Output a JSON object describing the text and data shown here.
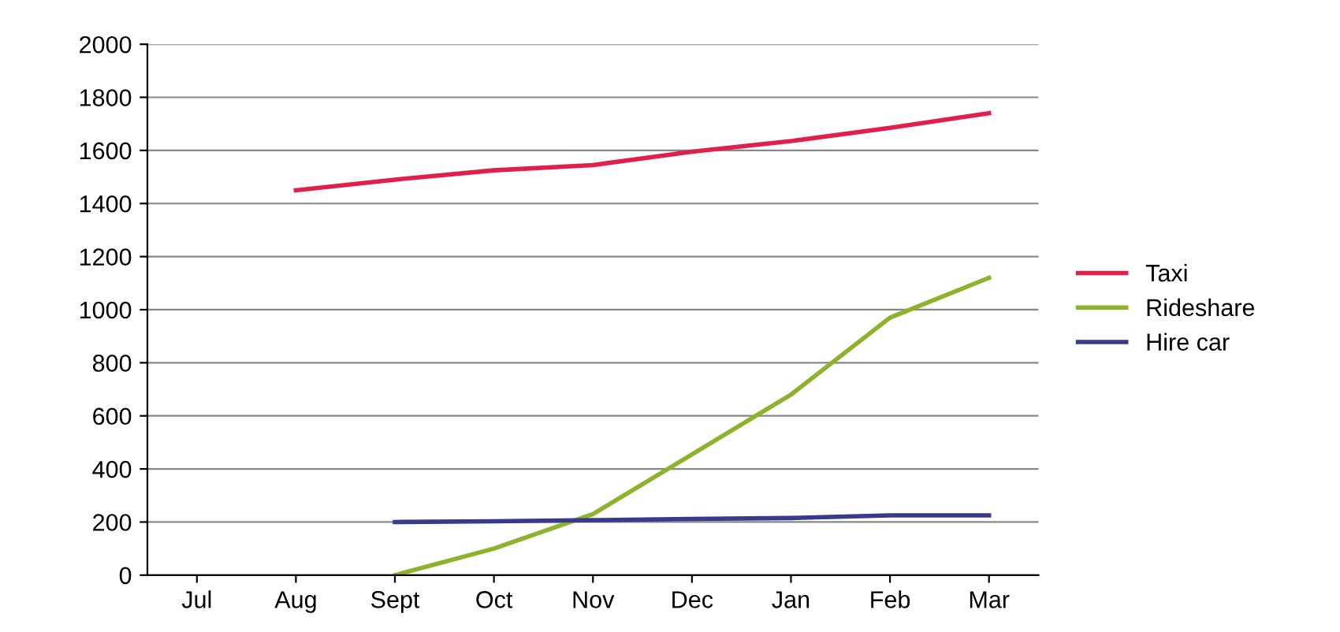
{
  "chart_data": {
    "type": "line",
    "categories": [
      "Jul",
      "Aug",
      "Sept",
      "Oct",
      "Nov",
      "Dec",
      "Jan",
      "Feb",
      "Mar"
    ],
    "series": [
      {
        "name": "Taxi",
        "color": "#e0204a",
        "values": [
          null,
          1450,
          1490,
          1525,
          1545,
          1595,
          1635,
          1685,
          1740
        ]
      },
      {
        "name": "Rideshare",
        "color": "#8db32a",
        "values": [
          null,
          null,
          0,
          100,
          230,
          455,
          680,
          970,
          1120
        ]
      },
      {
        "name": "Hire car",
        "color": "#3a3a8c",
        "values": [
          null,
          null,
          200,
          203,
          207,
          212,
          215,
          225,
          225
        ]
      }
    ],
    "ylim": [
      0,
      2000
    ],
    "yticks": [
      0,
      200,
      400,
      600,
      800,
      1000,
      1200,
      1400,
      1600,
      1800,
      2000
    ],
    "grid": "y",
    "legend": "right",
    "marker": "none",
    "line_style": "solid"
  }
}
